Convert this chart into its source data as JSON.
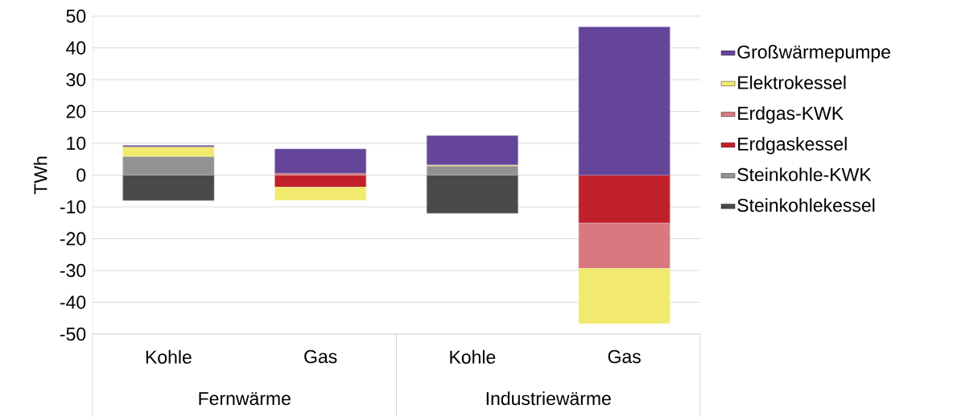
{
  "chart_data": {
    "type": "bar",
    "stacked": true,
    "ylabel": "TWh",
    "categories": [
      "Kohle",
      "Gas",
      "Kohle",
      "Gas"
    ],
    "annotations": [
      "Fernwärme",
      "Industriewärme"
    ],
    "ylim": [
      -50,
      50
    ],
    "yticks": [
      -50,
      -40,
      -30,
      -20,
      -10,
      0,
      10,
      20,
      30,
      40,
      50
    ],
    "grid": "y",
    "legend": "right",
    "series": [
      {
        "name": "Steinkohlekessel",
        "color": "#4a4a4c",
        "values": [
          -8.0,
          null,
          -12.0,
          null
        ]
      },
      {
        "name": "Steinkohle-KWK",
        "color": "#929294",
        "values": [
          5.9,
          null,
          2.9,
          null
        ]
      },
      {
        "name": "Erdgaskessel",
        "color": "#c0202a",
        "values": [
          null,
          -3.8,
          null,
          -15.1
        ]
      },
      {
        "name": "Erdgas-KWK",
        "color": "#d9797f",
        "values": [
          null,
          0.6,
          null,
          -14.3
        ]
      },
      {
        "name": "Elektrokessel",
        "color": "#f2ea6f",
        "values": [
          3.0,
          -4.1,
          0.3,
          -17.3
        ]
      },
      {
        "name": "Großwärmepumpe",
        "color": "#65459a",
        "values": [
          0.4,
          7.6,
          9.2,
          46.6
        ]
      }
    ]
  }
}
